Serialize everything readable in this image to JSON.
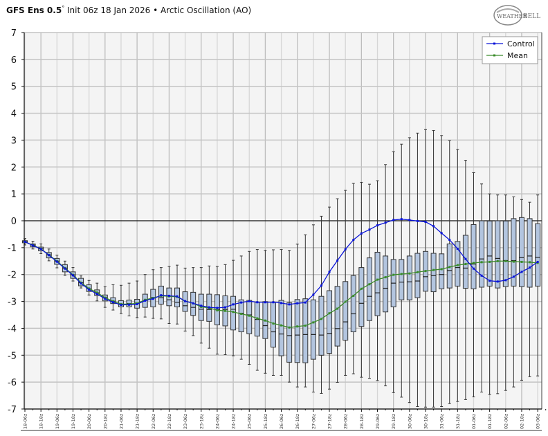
{
  "title": {
    "bold": "GFS Ens 0.5",
    "degree": "°",
    "rest": " Init 06z 18 Jan 2026 • Arctic Oscillation (AO)"
  },
  "logo_text": "WeatherBELL",
  "chart_data": {
    "type": "boxplot-line",
    "title": "GFS Ens 0.5° Init 06z 18 Jan 2026 • Arctic Oscillation (AO)",
    "xlabel": "",
    "ylabel": "",
    "ylim": [
      -7,
      7
    ],
    "yticks": [
      7,
      6,
      5,
      4,
      3,
      2,
      1,
      0,
      -1,
      -2,
      -3,
      -4,
      -5,
      -6,
      -7
    ],
    "grid": true,
    "legend_position": "top-right",
    "x_tick_labels": [
      "18-06z",
      "18-18z",
      "19-06z",
      "19-18z",
      "20-06z",
      "20-18z",
      "21-06z",
      "21-18z",
      "22-06z",
      "22-18z",
      "23-06z",
      "23-18z",
      "24-06z",
      "24-18z",
      "25-06z",
      "25-18z",
      "26-06z",
      "26-18z",
      "27-06z",
      "27-18z",
      "28-06z",
      "28-18z",
      "29-06z",
      "29-18z",
      "30-06z",
      "30-18z",
      "31-06z",
      "31-18z",
      "01-06z",
      "01-18z",
      "02-06z",
      "02-18z",
      "03-06z"
    ],
    "step_hours": 6,
    "series": [
      {
        "name": "Control",
        "color": "#0a14d8",
        "values": [
          -0.78,
          -0.92,
          -1.05,
          -1.28,
          -1.52,
          -1.78,
          -2.03,
          -2.33,
          -2.56,
          -2.72,
          -2.9,
          -3.03,
          -3.13,
          -3.12,
          -3.1,
          -2.97,
          -2.9,
          -2.77,
          -2.79,
          -2.81,
          -2.99,
          -3.07,
          -3.16,
          -3.22,
          -3.24,
          -3.22,
          -3.11,
          -3.04,
          -2.99,
          -3.03,
          -3.03,
          -3.03,
          -3.06,
          -3.11,
          -3.07,
          -3.04,
          -2.75,
          -2.41,
          -1.9,
          -1.48,
          -1.06,
          -0.71,
          -0.47,
          -0.33,
          -0.17,
          -0.07,
          0.03,
          0.06,
          0.03,
          -0.01,
          -0.04,
          -0.2,
          -0.46,
          -0.71,
          -1.04,
          -1.42,
          -1.78,
          -2.04,
          -2.23,
          -2.26,
          -2.21,
          -2.08,
          -1.9,
          -1.74,
          -1.53
        ]
      },
      {
        "name": "Mean",
        "color": "#3b8c2a",
        "values": [
          -0.78,
          -0.91,
          -1.04,
          -1.27,
          -1.5,
          -1.76,
          -2.01,
          -2.3,
          -2.52,
          -2.67,
          -2.86,
          -2.99,
          -3.1,
          -3.1,
          -3.07,
          -2.94,
          -2.87,
          -2.79,
          -2.81,
          -2.83,
          -2.99,
          -3.07,
          -3.2,
          -3.24,
          -3.33,
          -3.35,
          -3.39,
          -3.46,
          -3.53,
          -3.63,
          -3.71,
          -3.82,
          -3.89,
          -3.97,
          -3.93,
          -3.9,
          -3.78,
          -3.65,
          -3.44,
          -3.27,
          -3.01,
          -2.79,
          -2.53,
          -2.36,
          -2.19,
          -2.1,
          -2.01,
          -1.98,
          -1.96,
          -1.91,
          -1.87,
          -1.83,
          -1.8,
          -1.72,
          -1.65,
          -1.61,
          -1.57,
          -1.54,
          -1.53,
          -1.5,
          -1.5,
          -1.52,
          -1.53,
          -1.54,
          -1.57
        ]
      }
    ],
    "boxes": {
      "min": [
        -0.9,
        -1.05,
        -1.22,
        -1.49,
        -1.75,
        -2.03,
        -2.24,
        -2.5,
        -2.76,
        -2.98,
        -3.22,
        -3.32,
        -3.45,
        -3.54,
        -3.6,
        -3.58,
        -3.63,
        -3.65,
        -3.82,
        -3.84,
        -4.1,
        -4.27,
        -4.55,
        -4.74,
        -4.96,
        -4.98,
        -5.02,
        -5.15,
        -5.34,
        -5.56,
        -5.67,
        -5.75,
        -5.75,
        -6.0,
        -6.18,
        -6.18,
        -6.37,
        -6.42,
        -6.26,
        -6.01,
        -5.75,
        -5.69,
        -5.82,
        -5.86,
        -5.94,
        -6.14,
        -6.39,
        -6.56,
        -6.76,
        -6.91,
        -6.93,
        -6.93,
        -6.91,
        -6.8,
        -6.72,
        -6.65,
        -6.55,
        -6.37,
        -6.46,
        -6.43,
        -6.31,
        -6.18,
        -5.93,
        -5.8,
        -5.77
      ],
      "q1": [
        -0.82,
        -0.97,
        -1.12,
        -1.38,
        -1.62,
        -1.9,
        -2.14,
        -2.42,
        -2.63,
        -2.78,
        -2.98,
        -3.08,
        -3.2,
        -3.2,
        -3.25,
        -3.22,
        -3.2,
        -3.1,
        -3.16,
        -3.2,
        -3.37,
        -3.52,
        -3.71,
        -3.74,
        -3.87,
        -3.91,
        -4.06,
        -4.13,
        -4.2,
        -4.29,
        -4.38,
        -4.7,
        -5.02,
        -5.26,
        -5.27,
        -5.28,
        -5.15,
        -5.0,
        -4.93,
        -4.66,
        -4.44,
        -4.13,
        -3.93,
        -3.71,
        -3.53,
        -3.39,
        -3.2,
        -2.94,
        -2.94,
        -2.86,
        -2.62,
        -2.64,
        -2.53,
        -2.5,
        -2.43,
        -2.51,
        -2.53,
        -2.47,
        -2.43,
        -2.5,
        -2.45,
        -2.43,
        -2.45,
        -2.47,
        -2.43
      ],
      "median": [
        -0.78,
        -0.9,
        -1.04,
        -1.27,
        -1.5,
        -1.76,
        -2.01,
        -2.3,
        -2.53,
        -2.68,
        -2.86,
        -2.99,
        -3.1,
        -3.08,
        -3.06,
        -2.96,
        -2.86,
        -2.86,
        -2.94,
        -3.03,
        -3.16,
        -3.22,
        -3.29,
        -3.3,
        -3.3,
        -3.3,
        -3.29,
        -3.44,
        -3.5,
        -3.67,
        -3.9,
        -4.13,
        -4.21,
        -4.27,
        -4.25,
        -4.23,
        -4.23,
        -4.25,
        -4.19,
        -4.01,
        -3.76,
        -3.46,
        -3.07,
        -2.81,
        -2.68,
        -2.51,
        -2.32,
        -2.28,
        -2.27,
        -2.24,
        -2.08,
        -2.04,
        -2.0,
        -1.85,
        -1.74,
        -1.76,
        -1.61,
        -1.42,
        -1.31,
        -1.4,
        -1.48,
        -1.48,
        -1.37,
        -1.31,
        -1.36
      ],
      "q3": [
        -0.74,
        -0.86,
        -0.98,
        -1.18,
        -1.4,
        -1.63,
        -1.9,
        -2.14,
        -2.38,
        -2.57,
        -2.76,
        -2.86,
        -2.97,
        -2.95,
        -2.92,
        -2.73,
        -2.55,
        -2.43,
        -2.5,
        -2.5,
        -2.64,
        -2.66,
        -2.73,
        -2.73,
        -2.75,
        -2.79,
        -2.81,
        -2.94,
        -2.96,
        -3.03,
        -3.01,
        -3.03,
        -2.96,
        -3.05,
        -2.93,
        -2.9,
        -2.94,
        -2.81,
        -2.6,
        -2.44,
        -2.26,
        -2.04,
        -1.74,
        -1.38,
        -1.17,
        -1.31,
        -1.44,
        -1.44,
        -1.31,
        -1.21,
        -1.14,
        -1.21,
        -1.23,
        -0.86,
        -0.77,
        -0.54,
        -0.14,
        0.0,
        -0.01,
        0.0,
        -0.01,
        0.08,
        0.12,
        0.08,
        -0.11
      ],
      "max": [
        -0.66,
        -0.76,
        -0.86,
        -1.05,
        -1.28,
        -1.5,
        -1.74,
        -2.05,
        -2.22,
        -2.32,
        -2.45,
        -2.38,
        -2.4,
        -2.32,
        -2.24,
        -2.0,
        -1.82,
        -1.74,
        -1.7,
        -1.65,
        -1.76,
        -1.74,
        -1.74,
        -1.68,
        -1.7,
        -1.63,
        -1.47,
        -1.31,
        -1.14,
        -1.07,
        -1.1,
        -1.08,
        -1.07,
        -1.1,
        -0.87,
        -0.52,
        -0.15,
        0.17,
        0.51,
        0.82,
        1.13,
        1.39,
        1.43,
        1.36,
        1.49,
        2.09,
        2.57,
        2.85,
        3.09,
        3.26,
        3.39,
        3.36,
        3.17,
        2.98,
        2.65,
        2.25,
        1.79,
        1.37,
        1.0,
        0.96,
        0.96,
        0.89,
        0.79,
        0.69,
        0.96
      ]
    },
    "box_fill": "#b3c5df",
    "legend": [
      "Control",
      "Mean"
    ]
  }
}
